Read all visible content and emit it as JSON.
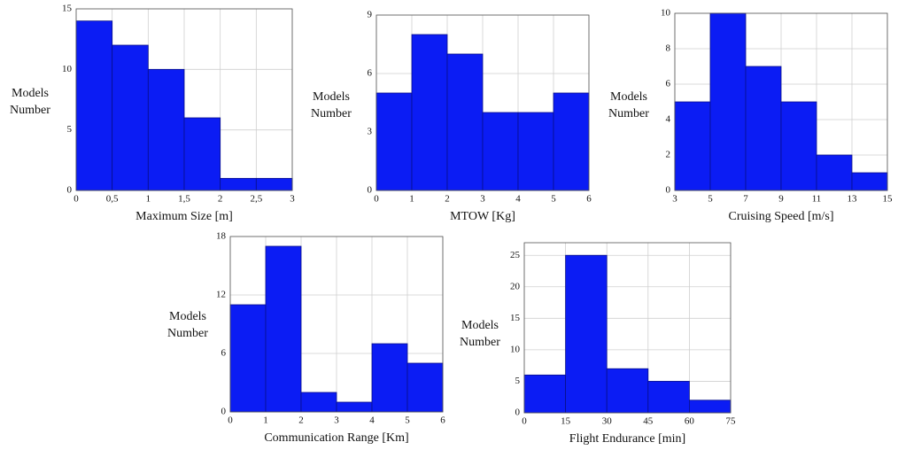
{
  "chart_data": [
    {
      "type": "histogram",
      "xlabel": "Maximum Size [m]",
      "ylabel": "Models Number",
      "bins": [
        0,
        0.5,
        1,
        1.5,
        2,
        2.5,
        3
      ],
      "values": [
        14,
        12,
        10,
        6,
        1,
        1
      ],
      "color": "#0b1cf4",
      "xlim": [
        0,
        3
      ],
      "xticks": [
        0,
        {
          "value": 0.5,
          "label": "0,5"
        },
        1,
        {
          "value": 1.5,
          "label": "1,5"
        },
        2,
        {
          "value": 2.5,
          "label": "2,5"
        },
        3
      ],
      "ylim": [
        0,
        15
      ],
      "yticks": [
        0,
        5,
        10,
        15
      ],
      "grid": true
    },
    {
      "type": "histogram",
      "xlabel": "MTOW [Kg]",
      "ylabel": "Models Number",
      "bins": [
        0,
        1,
        2,
        3,
        4,
        5,
        6
      ],
      "values": [
        5,
        8,
        7,
        4,
        4,
        5
      ],
      "color": "#0b1cf4",
      "xlim": [
        0,
        6
      ],
      "xticks": [
        0,
        1,
        2,
        3,
        4,
        5,
        6
      ],
      "ylim": [
        0,
        9
      ],
      "yticks": [
        0,
        3,
        6,
        9
      ],
      "grid": true
    },
    {
      "type": "histogram",
      "xlabel": "Cruising Speed [m/s]",
      "ylabel": "Models Number",
      "bins": [
        3,
        5,
        7,
        9,
        11,
        13,
        15
      ],
      "values": [
        5,
        10,
        7,
        5,
        2,
        1
      ],
      "color": "#0b1cf4",
      "xlim": [
        3,
        15
      ],
      "xticks": [
        3,
        5,
        7,
        9,
        11,
        13,
        15
      ],
      "ylim": [
        0,
        10
      ],
      "yticks": [
        0,
        2,
        4,
        6,
        8,
        10
      ],
      "grid": true
    },
    {
      "type": "histogram",
      "xlabel": "Communication Range [Km]",
      "ylabel": "Models Number",
      "bins": [
        0,
        1,
        2,
        3,
        4,
        5,
        6
      ],
      "values": [
        11,
        17,
        2,
        1,
        7,
        5
      ],
      "color": "#0b1cf4",
      "xlim": [
        0,
        6
      ],
      "xticks": [
        0,
        1,
        2,
        3,
        4,
        5,
        6
      ],
      "ylim": [
        0,
        18
      ],
      "yticks": [
        0,
        6,
        12,
        18
      ],
      "grid": true
    },
    {
      "type": "histogram",
      "xlabel": "Flight Endurance [min]",
      "ylabel": "Models Number",
      "bins": [
        0,
        15,
        30,
        45,
        60,
        75
      ],
      "values": [
        6,
        25,
        7,
        5,
        2
      ],
      "color": "#0b1cf4",
      "xlim": [
        0,
        75
      ],
      "xticks": [
        0,
        15,
        30,
        45,
        60,
        75
      ],
      "ylim": [
        0,
        27
      ],
      "yticks": [
        0,
        5,
        10,
        15,
        20,
        25
      ],
      "grid": true
    }
  ]
}
